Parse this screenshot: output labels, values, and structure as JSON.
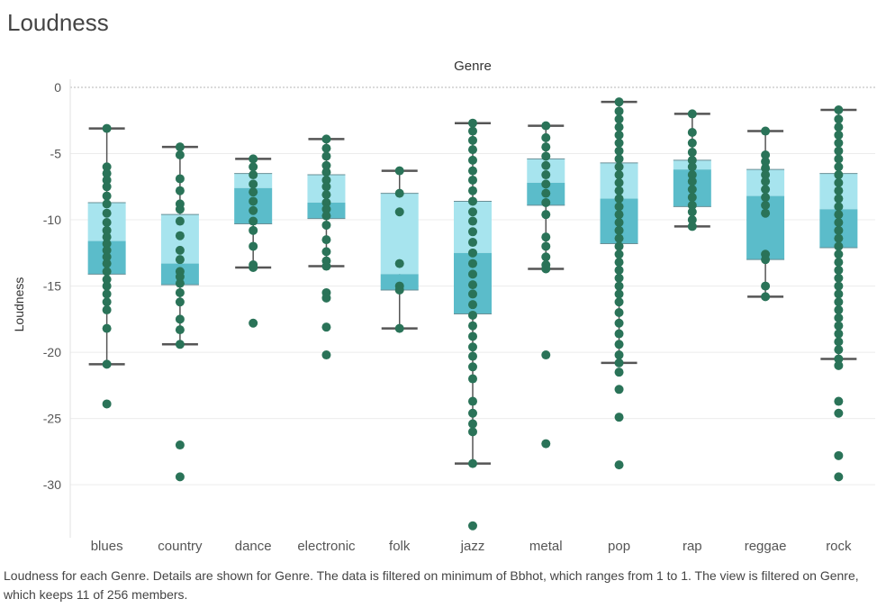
{
  "title": "Loudness",
  "caption": "Loudness for each Genre.  Details are shown for Genre. The data is filtered on minimum of Bbhot, which ranges from 1 to 1. The view is filtered on Genre, which keeps 11 of 256 members.",
  "chart_data": {
    "type": "boxplot",
    "column_header": "Genre",
    "ylabel": "Loudness",
    "ylim": [
      -34,
      0
    ],
    "yticks": [
      0,
      -5,
      -10,
      -15,
      -20,
      -25,
      -30
    ],
    "grid": true,
    "colors": {
      "box_upper": "#a7e4ee",
      "box_lower": "#5bbcca",
      "dots": "#2a7358",
      "whisker": "#555555",
      "grid": "#ececec"
    },
    "categories": [
      "blues",
      "country",
      "dance",
      "electronic",
      "folk",
      "jazz",
      "metal",
      "pop",
      "rap",
      "reggae",
      "rock"
    ],
    "boxes": [
      {
        "category": "blues",
        "whisker_high": -3.1,
        "q3": -8.7,
        "median": -11.6,
        "q1": -14.1,
        "whisker_low": -20.9,
        "points": [
          -3.1,
          -6.0,
          -6.5,
          -7.0,
          -7.5,
          -8.2,
          -8.8,
          -9.5,
          -10.2,
          -10.8,
          -11.3,
          -11.8,
          -12.3,
          -12.8,
          -13.3,
          -13.9,
          -14.5,
          -15.0,
          -15.6,
          -16.2,
          -16.8,
          -18.2,
          -20.9,
          -23.9
        ]
      },
      {
        "category": "country",
        "whisker_high": -4.5,
        "q3": -9.6,
        "median": -13.3,
        "q1": -14.9,
        "whisker_low": -19.4,
        "points": [
          -4.5,
          -5.1,
          -6.9,
          -7.8,
          -8.8,
          -9.2,
          -10.1,
          -11.2,
          -12.3,
          -13.0,
          -13.9,
          -14.3,
          -14.8,
          -15.5,
          -16.2,
          -17.5,
          -18.3,
          -19.4,
          -27.0,
          -29.4
        ]
      },
      {
        "category": "dance",
        "whisker_high": -5.4,
        "q3": -6.5,
        "median": -7.6,
        "q1": -10.3,
        "whisker_low": -13.6,
        "points": [
          -5.4,
          -6.0,
          -6.6,
          -7.3,
          -7.9,
          -8.6,
          -9.3,
          -10.1,
          -10.8,
          -12.0,
          -13.4,
          -13.6,
          -17.8
        ]
      },
      {
        "category": "electronic",
        "whisker_high": -3.9,
        "q3": -6.6,
        "median": -8.7,
        "q1": -9.9,
        "whisker_low": -13.5,
        "points": [
          -3.9,
          -4.6,
          -5.2,
          -5.9,
          -6.4,
          -7.0,
          -7.5,
          -8.1,
          -8.7,
          -9.2,
          -9.7,
          -10.4,
          -11.5,
          -12.4,
          -13.1,
          -13.5,
          -15.5,
          -15.9,
          -18.1,
          -20.2
        ]
      },
      {
        "category": "folk",
        "whisker_high": -6.3,
        "q3": -8.0,
        "median": -14.1,
        "q1": -15.3,
        "whisker_low": -18.2,
        "points": [
          -6.3,
          -8.0,
          -9.4,
          -13.3,
          -15.0,
          -15.3,
          -18.2
        ]
      },
      {
        "category": "jazz",
        "whisker_high": -2.7,
        "q3": -8.6,
        "median": -12.5,
        "q1": -17.1,
        "whisker_low": -28.4,
        "points": [
          -2.7,
          -3.3,
          -4.0,
          -4.7,
          -5.5,
          -6.3,
          -7.0,
          -7.8,
          -8.6,
          -9.4,
          -10.1,
          -10.9,
          -11.7,
          -12.5,
          -13.3,
          -14.1,
          -14.9,
          -15.6,
          -16.4,
          -17.2,
          -18.0,
          -18.8,
          -19.6,
          -20.3,
          -21.1,
          -22.0,
          -23.7,
          -24.6,
          -25.4,
          -26.0,
          -28.4,
          -33.1
        ]
      },
      {
        "category": "metal",
        "whisker_high": -2.9,
        "q3": -5.4,
        "median": -7.2,
        "q1": -8.9,
        "whisker_low": -13.7,
        "points": [
          -2.9,
          -3.8,
          -4.5,
          -5.2,
          -5.9,
          -6.6,
          -7.3,
          -8.0,
          -8.7,
          -9.6,
          -11.3,
          -12.0,
          -12.8,
          -13.4,
          -13.7,
          -20.2,
          -26.9
        ]
      },
      {
        "category": "pop",
        "whisker_high": -1.1,
        "q3": -5.7,
        "median": -8.4,
        "q1": -11.8,
        "whisker_low": -20.8,
        "points": [
          -1.1,
          -1.8,
          -2.4,
          -3.0,
          -3.6,
          -4.2,
          -4.8,
          -5.4,
          -6.0,
          -6.6,
          -7.2,
          -7.8,
          -8.4,
          -9.0,
          -9.6,
          -10.2,
          -10.8,
          -11.4,
          -12.0,
          -12.6,
          -13.2,
          -13.8,
          -14.4,
          -15.0,
          -15.6,
          -16.2,
          -17.0,
          -17.8,
          -18.6,
          -19.4,
          -20.2,
          -20.8,
          -21.5,
          -22.8,
          -24.9,
          -28.5
        ]
      },
      {
        "category": "rap",
        "whisker_high": -2.0,
        "q3": -5.5,
        "median": -6.2,
        "q1": -9.0,
        "whisker_low": -10.5,
        "points": [
          -2.0,
          -3.4,
          -4.2,
          -4.9,
          -5.5,
          -6.0,
          -6.6,
          -7.1,
          -7.7,
          -8.3,
          -8.9,
          -9.4,
          -10.0,
          -10.5
        ]
      },
      {
        "category": "reggae",
        "whisker_high": -3.3,
        "q3": -6.2,
        "median": -8.2,
        "q1": -13.0,
        "whisker_low": -15.8,
        "points": [
          -3.3,
          -5.1,
          -5.6,
          -6.1,
          -6.6,
          -7.1,
          -7.7,
          -8.3,
          -8.9,
          -9.5,
          -12.6,
          -13.0,
          -15.0,
          -15.8
        ]
      },
      {
        "category": "rock",
        "whisker_high": -1.7,
        "q3": -6.5,
        "median": -9.2,
        "q1": -12.1,
        "whisker_low": -20.5,
        "points": [
          -1.7,
          -2.4,
          -3.0,
          -3.6,
          -4.2,
          -4.8,
          -5.4,
          -6.0,
          -6.6,
          -7.2,
          -7.8,
          -8.4,
          -9.0,
          -9.6,
          -10.2,
          -10.8,
          -11.4,
          -12.0,
          -12.6,
          -13.2,
          -13.8,
          -14.4,
          -15.0,
          -15.6,
          -16.2,
          -16.8,
          -17.4,
          -18.0,
          -18.6,
          -19.2,
          -19.8,
          -20.5,
          -21.0,
          -23.7,
          -24.6,
          -27.8,
          -29.4
        ]
      }
    ]
  }
}
